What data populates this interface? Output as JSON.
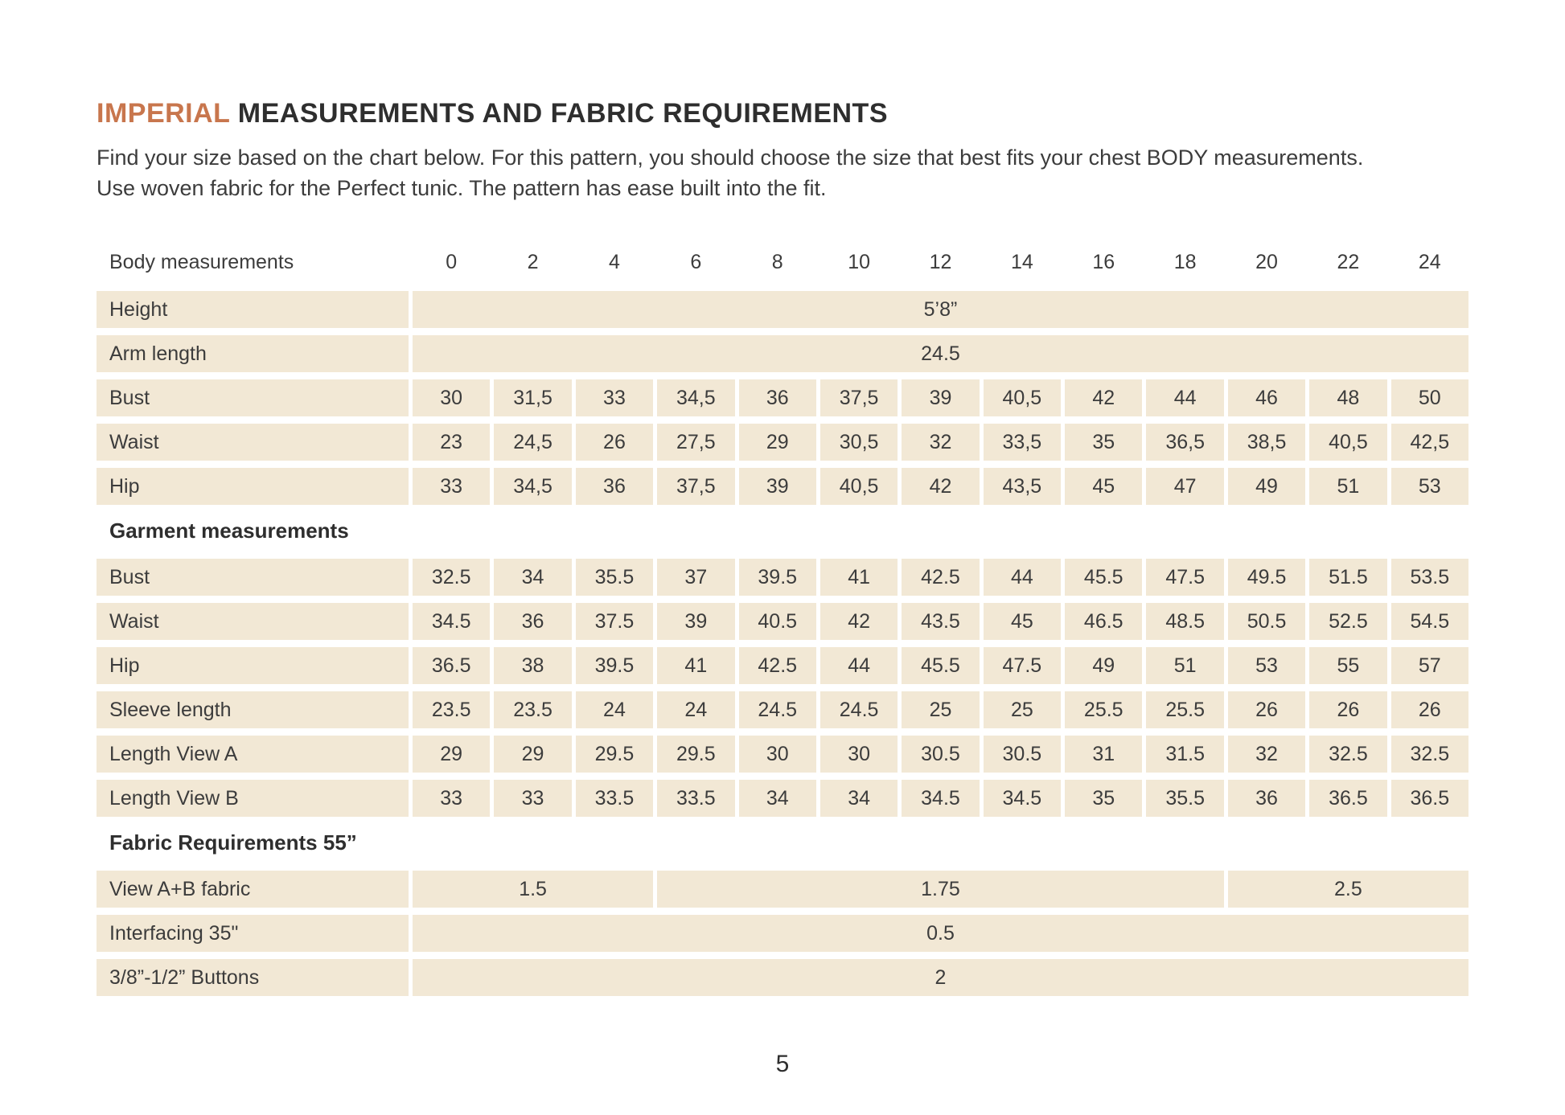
{
  "page": {
    "title_accent": "IMPERIAL",
    "title_rest": " MEASUREMENTS AND FABRIC REQUIREMENTS",
    "intro_line1": "Find your size based on the chart below. For this pattern, you should choose the size that best fits your chest BODY measurements.",
    "intro_line2": "Use woven fabric for the Perfect tunic. The pattern has ease built into the fit.",
    "page_number": "5"
  },
  "colors": {
    "accent": "#C8764D",
    "cell_bg": "#F2E8D5",
    "text": "#3C3C3C"
  },
  "table": {
    "header": {
      "label": "Body measurements",
      "sizes": [
        "0",
        "2",
        "4",
        "6",
        "8",
        "10",
        "12",
        "14",
        "16",
        "18",
        "20",
        "22",
        "24"
      ]
    },
    "body_rows": [
      {
        "label": "Height",
        "span_value": "5’8”"
      },
      {
        "label": "Arm length",
        "span_value": "24.5"
      },
      {
        "label": "Bust",
        "values": [
          "30",
          "31,5",
          "33",
          "34,5",
          "36",
          "37,5",
          "39",
          "40,5",
          "42",
          "44",
          "46",
          "48",
          "50"
        ]
      },
      {
        "label": "Waist",
        "values": [
          "23",
          "24,5",
          "26",
          "27,5",
          "29",
          "30,5",
          "32",
          "33,5",
          "35",
          "36,5",
          "38,5",
          "40,5",
          "42,5"
        ]
      },
      {
        "label": "Hip",
        "values": [
          "33",
          "34,5",
          "36",
          "37,5",
          "39",
          "40,5",
          "42",
          "43,5",
          "45",
          "47",
          "49",
          "51",
          "53"
        ]
      }
    ],
    "garment_section_label": "Garment measurements",
    "garment_rows": [
      {
        "label": "Bust",
        "values": [
          "32.5",
          "34",
          "35.5",
          "37",
          "39.5",
          "41",
          "42.5",
          "44",
          "45.5",
          "47.5",
          "49.5",
          "51.5",
          "53.5"
        ]
      },
      {
        "label": "Waist",
        "values": [
          "34.5",
          "36",
          "37.5",
          "39",
          "40.5",
          "42",
          "43.5",
          "45",
          "46.5",
          "48.5",
          "50.5",
          "52.5",
          "54.5"
        ]
      },
      {
        "label": "Hip",
        "values": [
          "36.5",
          "38",
          "39.5",
          "41",
          "42.5",
          "44",
          "45.5",
          "47.5",
          "49",
          "51",
          "53",
          "55",
          "57"
        ]
      },
      {
        "label": "Sleeve length",
        "values": [
          "23.5",
          "23.5",
          "24",
          "24",
          "24.5",
          "24.5",
          "25",
          "25",
          "25.5",
          "25.5",
          "26",
          "26",
          "26"
        ]
      },
      {
        "label": "Length View A",
        "values": [
          "29",
          "29",
          "29.5",
          "29.5",
          "30",
          "30",
          "30.5",
          "30.5",
          "31",
          "31.5",
          "32",
          "32.5",
          "32.5"
        ]
      },
      {
        "label": "Length View B",
        "values": [
          "33",
          "33",
          "33.5",
          "33.5",
          "34",
          "34",
          "34.5",
          "34.5",
          "35",
          "35.5",
          "36",
          "36.5",
          "36.5"
        ]
      }
    ],
    "fabric_section_label": "Fabric Requirements 55”",
    "fabric_rows": [
      {
        "label": "View  A+B fabric",
        "segments": [
          {
            "value": "1.5",
            "span": 3
          },
          {
            "value": "1.75",
            "span": 7
          },
          {
            "value": "2.5",
            "span": 3
          }
        ]
      },
      {
        "label": "Interfacing 35\"",
        "segments": [
          {
            "value": "0.5",
            "span": 13
          }
        ]
      },
      {
        "label": "3/8”-1/2” Buttons",
        "segments": [
          {
            "value": "2",
            "span": 13
          }
        ]
      }
    ]
  }
}
